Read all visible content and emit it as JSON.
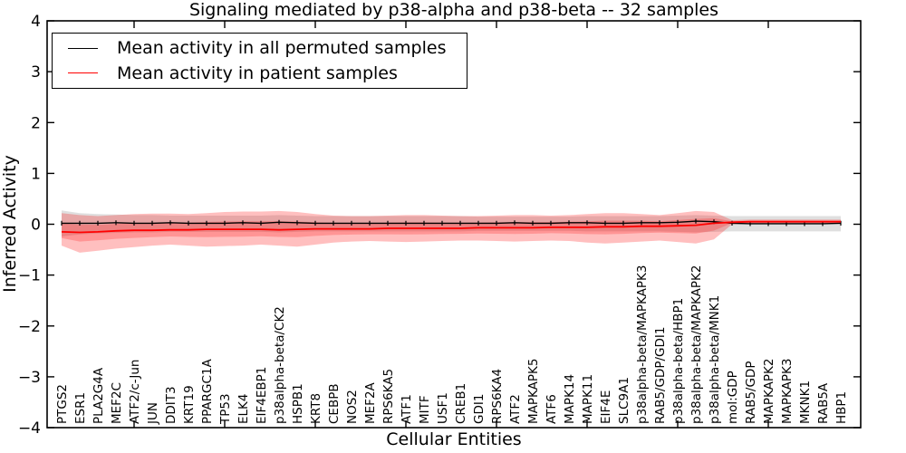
{
  "chart_data": {
    "type": "line",
    "title": "Signaling mediated by p38-alpha and p38-beta -- 32 samples",
    "xlabel": "Cellular Entities",
    "ylabel": "Inferred Activity",
    "ylim": [
      -4,
      4
    ],
    "ytick_values": [
      -4,
      -3,
      -2,
      -1,
      0,
      1,
      2,
      3,
      4
    ],
    "ytick_labels": [
      "−4",
      "−3",
      "−2",
      "−1",
      "0",
      "1",
      "2",
      "3",
      "4"
    ],
    "x_major_tick_step": 5,
    "grid": false,
    "legend_position": "upper left",
    "categories": [
      "PTGS2",
      "ESR1",
      "PLA2G4A",
      "MEF2C",
      "ATF2/c-Jun",
      "JUN",
      "DDIT3",
      "KRT19",
      "PPARGC1A",
      "TP53",
      "ELK4",
      "EIF4EBP1",
      "p38alpha-beta/CK2",
      "HSPB1",
      "KRT8",
      "CEBPB",
      "NOS2",
      "MEF2A",
      "RPS6KA5",
      "ATF1",
      "MITF",
      "USF1",
      "CREB1",
      "GDI1",
      "RPS6KA4",
      "ATF2",
      "MAPKAPK5",
      "ATF6",
      "MAPK14",
      "MAPK11",
      "EIF4E",
      "SLC9A1",
      "p38alpha-beta/MAPKAPK3",
      "RAB5/GDP/GDI1",
      "p38alpha-beta/HBP1",
      "p38alpha-beta/MAPKAPK2",
      "p38alpha-beta/MNK1",
      "mol:GDP",
      "RAB5/GDP",
      "MAPKAPK2",
      "MAPKAPK3",
      "MKNK1",
      "RAB5A",
      "HBP1"
    ],
    "series": [
      {
        "name": "Mean activity in all permuted samples",
        "color": "#000000",
        "band_color": "#aaaaaa",
        "mean": [
          0.02,
          0.02,
          0.02,
          0.03,
          0.02,
          0.02,
          0.03,
          0.02,
          0.02,
          0.02,
          0.03,
          0.02,
          0.04,
          0.03,
          0.02,
          0.02,
          0.02,
          0.02,
          0.02,
          0.02,
          0.02,
          0.02,
          0.02,
          0.02,
          0.02,
          0.03,
          0.02,
          0.02,
          0.03,
          0.03,
          0.02,
          0.02,
          0.03,
          0.03,
          0.04,
          0.06,
          0.05,
          0.02,
          0.01,
          0.01,
          0.01,
          0.01,
          0.01,
          0.02
        ],
        "band_upper": [
          0.27,
          0.22,
          0.2,
          0.19,
          0.18,
          0.18,
          0.17,
          0.17,
          0.17,
          0.17,
          0.17,
          0.17,
          0.18,
          0.17,
          0.16,
          0.16,
          0.16,
          0.16,
          0.16,
          0.16,
          0.16,
          0.16,
          0.16,
          0.15,
          0.15,
          0.15,
          0.15,
          0.15,
          0.15,
          0.16,
          0.16,
          0.16,
          0.16,
          0.16,
          0.17,
          0.18,
          0.17,
          0.16,
          0.16,
          0.16,
          0.16,
          0.16,
          0.16,
          0.16
        ],
        "band_lower": [
          -0.24,
          -0.2,
          -0.18,
          -0.17,
          -0.16,
          -0.16,
          -0.15,
          -0.15,
          -0.15,
          -0.15,
          -0.15,
          -0.15,
          -0.16,
          -0.15,
          -0.14,
          -0.14,
          -0.14,
          -0.14,
          -0.14,
          -0.14,
          -0.14,
          -0.14,
          -0.14,
          -0.13,
          -0.13,
          -0.13,
          -0.13,
          -0.13,
          -0.13,
          -0.14,
          -0.14,
          -0.14,
          -0.14,
          -0.14,
          -0.15,
          -0.16,
          -0.15,
          -0.14,
          -0.14,
          -0.14,
          -0.14,
          -0.14,
          -0.14,
          -0.14
        ]
      },
      {
        "name": "Mean activity in patient samples",
        "color": "#ff0000",
        "band_color": "#ff0000",
        "mean": [
          -0.15,
          -0.16,
          -0.15,
          -0.13,
          -0.12,
          -0.12,
          -0.11,
          -0.11,
          -0.1,
          -0.1,
          -0.1,
          -0.1,
          -0.11,
          -0.1,
          -0.09,
          -0.09,
          -0.09,
          -0.09,
          -0.08,
          -0.08,
          -0.08,
          -0.08,
          -0.08,
          -0.07,
          -0.07,
          -0.07,
          -0.07,
          -0.06,
          -0.06,
          -0.06,
          -0.05,
          -0.05,
          -0.04,
          -0.04,
          -0.03,
          -0.02,
          0.02,
          0.04,
          0.05,
          0.05,
          0.05,
          0.05,
          0.05,
          0.05
        ],
        "band_upper": [
          0.22,
          0.18,
          0.16,
          0.18,
          0.2,
          0.21,
          0.21,
          0.2,
          0.22,
          0.24,
          0.25,
          0.25,
          0.26,
          0.24,
          0.2,
          0.17,
          0.16,
          0.16,
          0.17,
          0.18,
          0.18,
          0.17,
          0.16,
          0.16,
          0.17,
          0.18,
          0.18,
          0.17,
          0.18,
          0.2,
          0.22,
          0.22,
          0.2,
          0.18,
          0.22,
          0.26,
          0.24,
          0.08,
          0.09,
          0.09,
          0.09,
          0.09,
          0.09,
          0.09
        ],
        "band_lower": [
          -0.42,
          -0.56,
          -0.52,
          -0.48,
          -0.45,
          -0.42,
          -0.4,
          -0.42,
          -0.44,
          -0.43,
          -0.42,
          -0.4,
          -0.42,
          -0.44,
          -0.4,
          -0.36,
          -0.34,
          -0.33,
          -0.34,
          -0.35,
          -0.34,
          -0.33,
          -0.32,
          -0.32,
          -0.33,
          -0.34,
          -0.33,
          -0.32,
          -0.33,
          -0.36,
          -0.38,
          -0.36,
          -0.34,
          -0.32,
          -0.35,
          -0.38,
          -0.3,
          0.0,
          0.01,
          0.01,
          0.01,
          0.01,
          0.01,
          0.01
        ]
      }
    ]
  }
}
